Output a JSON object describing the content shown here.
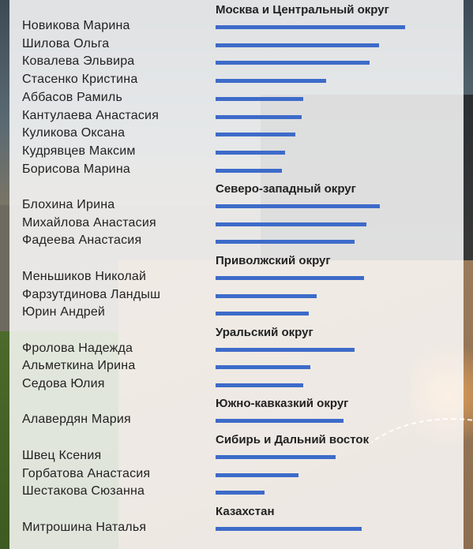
{
  "chart_data": {
    "type": "bar",
    "orientation": "horizontal",
    "bar_color": "#3d6bc9",
    "groups": [
      {
        "title": "Москва и Центральный округ",
        "items": [
          {
            "name": "Новикова Марина",
            "value": 240
          },
          {
            "name": "Шилова Ольга",
            "value": 207
          },
          {
            "name": "Ковалева Эльвира",
            "value": 195
          },
          {
            "name": "Стасенко Кристина",
            "value": 140
          },
          {
            "name": "Аббасов Рамиль",
            "value": 111
          },
          {
            "name": "Кантулаева Анастасия",
            "value": 109
          },
          {
            "name": "Куликова Оксана",
            "value": 101
          },
          {
            "name": "Кудрявцев Максим",
            "value": 88
          },
          {
            "name": "Борисова Марина",
            "value": 84
          }
        ]
      },
      {
        "title": "Северо-западный округ",
        "items": [
          {
            "name": "Блохина Ирина",
            "value": 208
          },
          {
            "name": "Михайлова Анастасия",
            "value": 191
          },
          {
            "name": "Фадеева Анастасия",
            "value": 176
          }
        ]
      },
      {
        "title": "Приволжский округ",
        "items": [
          {
            "name": "Меньшиков Николай",
            "value": 188
          },
          {
            "name": "Фарзутдинова Ландыш",
            "value": 128
          },
          {
            "name": "Юрин Андрей",
            "value": 118
          }
        ]
      },
      {
        "title": "Уральский округ",
        "items": [
          {
            "name": "Фролова Надежда",
            "value": 176
          },
          {
            "name": "Альметкина Ирина",
            "value": 120
          },
          {
            "name": "Седова Юлия",
            "value": 111
          }
        ]
      },
      {
        "title": "Южно-кавказкий округ",
        "items": [
          {
            "name": "Алавердян Мария",
            "value": 162
          }
        ]
      },
      {
        "title": "Сибирь и Дальний восток",
        "items": [
          {
            "name": "Швец Ксения",
            "value": 152
          },
          {
            "name": "Горбатова Анастасия",
            "value": 105
          },
          {
            "name": "Шестакова Сюзанна",
            "value": 62
          }
        ]
      },
      {
        "title": "Казахстан",
        "items": [
          {
            "name": "Митрошина Наталья",
            "value": 185
          }
        ]
      }
    ]
  }
}
